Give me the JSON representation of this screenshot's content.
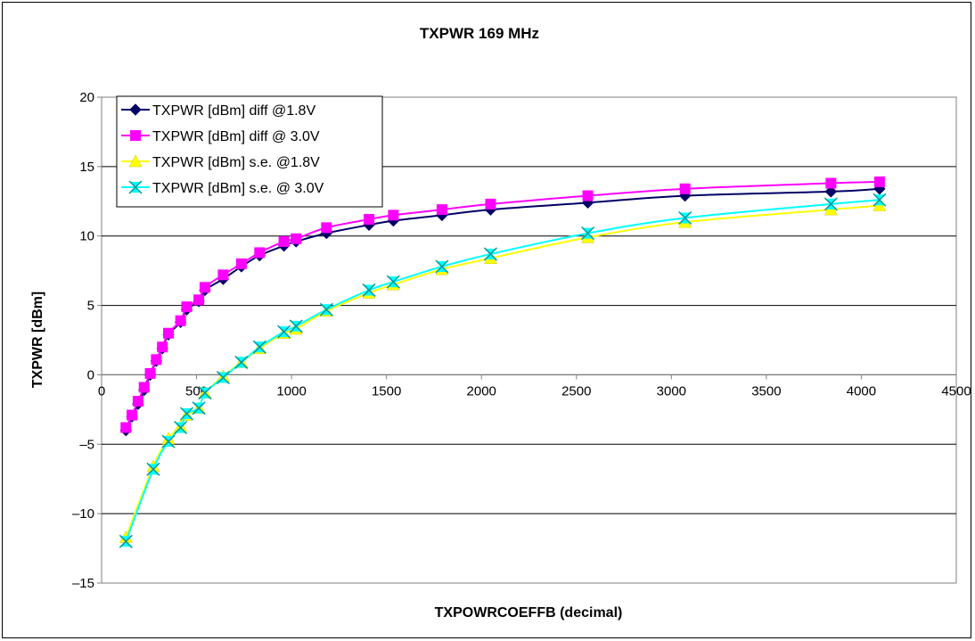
{
  "chart_data": {
    "type": "line",
    "title": "TXPWR 169 MHz",
    "xlabel": "TXPOWRCOEFFB (decimal)",
    "ylabel": "TXPWR [dBm]",
    "xlim": [
      0,
      4500
    ],
    "ylim": [
      -15,
      20
    ],
    "xticks": [
      0,
      500,
      1000,
      1500,
      2000,
      2500,
      3000,
      3500,
      4000,
      4500
    ],
    "yticks": [
      -15,
      -10,
      -5,
      0,
      5,
      10,
      15,
      20
    ],
    "xtick_labels": [
      "0",
      "500",
      "1000",
      "1500",
      "2000",
      "2500",
      "3000",
      "3500",
      "4000",
      "4500"
    ],
    "ytick_labels": [
      "–15",
      "–10",
      "–5",
      "0",
      "5",
      "10",
      "15",
      "20"
    ],
    "grid": "horizontal",
    "legend_position": "top-left",
    "series": [
      {
        "name": "TXPWR [dBm] diff @1.8V",
        "color": "#000066",
        "marker": "diamond",
        "points": [
          [
            128,
            -4.0
          ],
          [
            160,
            -3.0
          ],
          [
            192,
            -2.1
          ],
          [
            224,
            -1.1
          ],
          [
            256,
            0.0
          ],
          [
            288,
            1.0
          ],
          [
            320,
            1.9
          ],
          [
            352,
            2.9
          ],
          [
            416,
            3.8
          ],
          [
            448,
            4.7
          ],
          [
            512,
            5.3
          ],
          [
            544,
            6.1
          ],
          [
            640,
            6.9
          ],
          [
            736,
            7.8
          ],
          [
            832,
            8.6
          ],
          [
            960,
            9.3
          ],
          [
            1024,
            9.6
          ],
          [
            1184,
            10.2
          ],
          [
            1408,
            10.8
          ],
          [
            1536,
            11.1
          ],
          [
            1792,
            11.5
          ],
          [
            2048,
            11.9
          ],
          [
            2560,
            12.4
          ],
          [
            3072,
            12.9
          ],
          [
            3840,
            13.2
          ],
          [
            4096,
            13.4
          ]
        ]
      },
      {
        "name": "TXPWR [dBm] diff @ 3.0V",
        "color": "#ff00ff",
        "marker": "square",
        "points": [
          [
            128,
            -3.8
          ],
          [
            160,
            -2.9
          ],
          [
            192,
            -1.9
          ],
          [
            224,
            -0.9
          ],
          [
            256,
            0.1
          ],
          [
            288,
            1.1
          ],
          [
            320,
            2.0
          ],
          [
            352,
            3.0
          ],
          [
            416,
            3.9
          ],
          [
            448,
            4.9
          ],
          [
            512,
            5.4
          ],
          [
            544,
            6.3
          ],
          [
            640,
            7.2
          ],
          [
            736,
            8.0
          ],
          [
            832,
            8.8
          ],
          [
            960,
            9.6
          ],
          [
            1024,
            9.8
          ],
          [
            1184,
            10.6
          ],
          [
            1408,
            11.2
          ],
          [
            1536,
            11.5
          ],
          [
            1792,
            11.9
          ],
          [
            2048,
            12.3
          ],
          [
            2560,
            12.9
          ],
          [
            3072,
            13.4
          ],
          [
            3840,
            13.8
          ],
          [
            4096,
            13.9
          ]
        ]
      },
      {
        "name": "TXPWR [dBm] s.e. @1.8V",
        "color": "#ffff00",
        "marker": "triangle",
        "points": [
          [
            128,
            -11.7
          ],
          [
            272,
            -6.6
          ],
          [
            352,
            -4.6
          ],
          [
            416,
            -3.7
          ],
          [
            448,
            -2.9
          ],
          [
            512,
            -2.4
          ],
          [
            544,
            -1.3
          ],
          [
            640,
            -0.1
          ],
          [
            736,
            0.9
          ],
          [
            832,
            1.9
          ],
          [
            960,
            3.0
          ],
          [
            1024,
            3.3
          ],
          [
            1184,
            4.6
          ],
          [
            1408,
            5.9
          ],
          [
            1536,
            6.5
          ],
          [
            1792,
            7.6
          ],
          [
            2048,
            8.4
          ],
          [
            2560,
            9.9
          ],
          [
            3072,
            11.0
          ],
          [
            3840,
            11.9
          ],
          [
            4096,
            12.2
          ]
        ]
      },
      {
        "name": "TXPWR [dBm] s.e. @ 3.0V",
        "color": "#00ffff",
        "marker": "star",
        "points": [
          [
            128,
            -12.0
          ],
          [
            272,
            -6.8
          ],
          [
            352,
            -4.8
          ],
          [
            416,
            -3.8
          ],
          [
            448,
            -2.8
          ],
          [
            512,
            -2.4
          ],
          [
            544,
            -1.3
          ],
          [
            640,
            -0.2
          ],
          [
            736,
            0.9
          ],
          [
            832,
            2.0
          ],
          [
            960,
            3.1
          ],
          [
            1024,
            3.5
          ],
          [
            1184,
            4.7
          ],
          [
            1408,
            6.1
          ],
          [
            1536,
            6.7
          ],
          [
            1792,
            7.8
          ],
          [
            2048,
            8.7
          ],
          [
            2560,
            10.2
          ],
          [
            3072,
            11.3
          ],
          [
            3840,
            12.3
          ],
          [
            4096,
            12.6
          ]
        ]
      }
    ]
  }
}
